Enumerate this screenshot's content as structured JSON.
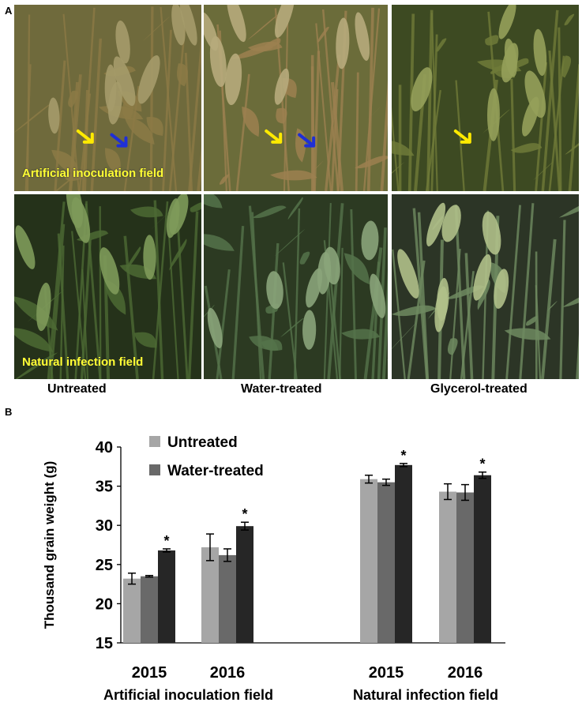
{
  "panel_a": {
    "letter": "A",
    "photos": [
      {
        "id": "r1c1",
        "base": "#6f6a3c",
        "leaf": "#8c7a45",
        "spike": "#a59b6a",
        "caption": "Artificial inoculation field",
        "arrows": [
          {
            "color": "#ffea00"
          },
          {
            "color": "#1f2fd6"
          }
        ]
      },
      {
        "id": "r1c2",
        "base": "#6b6c3a",
        "leaf": "#9c8050",
        "spike": "#b7ab7c",
        "caption": "",
        "arrows": [
          {
            "color": "#ffea00"
          },
          {
            "color": "#1f2fd6"
          }
        ]
      },
      {
        "id": "r1c3",
        "base": "#3d4a22",
        "leaf": "#6f7a38",
        "spike": "#95a05a",
        "caption": "",
        "arrows": [
          {
            "color": "#ffea00"
          }
        ]
      },
      {
        "id": "r2c1",
        "base": "#25321a",
        "leaf": "#4c6a34",
        "spike": "#7e9a5a",
        "caption": "Natural infection field",
        "arrows": []
      },
      {
        "id": "r2c2",
        "base": "#2c3a22",
        "leaf": "#55734a",
        "spike": "#8aa47a",
        "caption": "",
        "arrows": []
      },
      {
        "id": "r2c3",
        "base": "#2c3526",
        "leaf": "#6f8a60",
        "spike": "#b0c08a",
        "caption": "",
        "arrows": []
      }
    ],
    "column_labels": [
      "Untreated",
      "Water-treated",
      "Glycerol-treated"
    ]
  },
  "panel_b": {
    "letter": "B"
  },
  "chart_data": {
    "type": "bar",
    "title": "",
    "ylabel": "Thousand grain weight (g)",
    "ylim": [
      15,
      40
    ],
    "yticks": [
      15,
      20,
      25,
      30,
      35,
      40
    ],
    "groups": [
      {
        "field": "Artificial inoculation field",
        "years": [
          "2015",
          "2016"
        ]
      },
      {
        "field": "Natural infection field",
        "years": [
          "2015",
          "2016"
        ]
      }
    ],
    "categories": [
      "2015",
      "2016",
      "2015",
      "2016"
    ],
    "series": [
      {
        "name": "Untreated",
        "color": "#a6a6a6",
        "values": [
          23.2,
          27.2,
          35.9,
          34.3
        ],
        "errors": [
          0.7,
          1.7,
          0.5,
          1.0
        ]
      },
      {
        "name": "Water-treated",
        "color": "#696969",
        "values": [
          23.5,
          26.2,
          35.5,
          34.2
        ],
        "errors": [
          0.1,
          0.8,
          0.4,
          1.0
        ]
      },
      {
        "name": "",
        "color": "#262626",
        "values": [
          26.8,
          29.9,
          37.7,
          36.4
        ],
        "errors": [
          0.2,
          0.5,
          0.2,
          0.4
        ]
      }
    ],
    "significance": [
      "*",
      "*",
      "*",
      "*"
    ],
    "legend": {
      "position": "top-left",
      "entries": [
        "Untreated",
        "Water-treated"
      ]
    }
  }
}
